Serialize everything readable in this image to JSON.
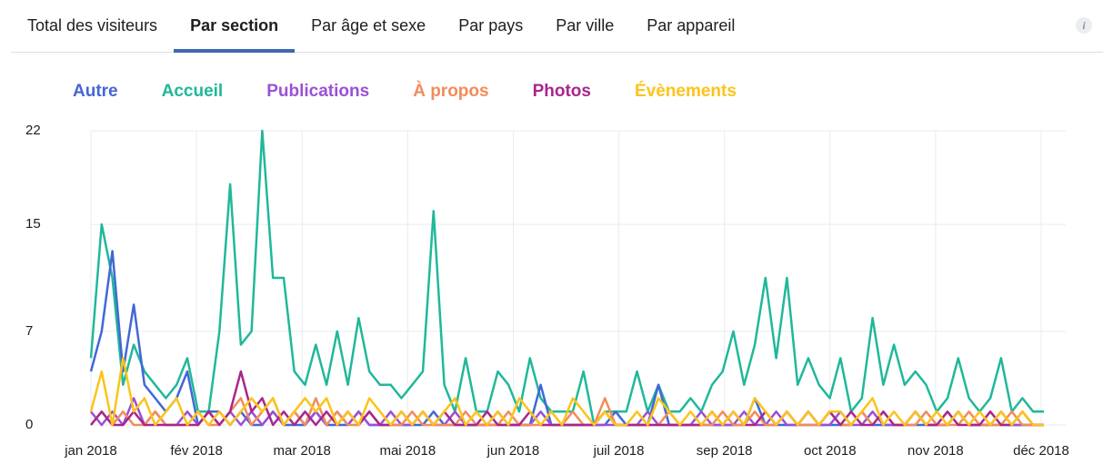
{
  "tabs": {
    "items": [
      "Total des visiteurs",
      "Par section",
      "Par âge et sexe",
      "Par pays",
      "Par ville",
      "Par appareil"
    ],
    "active": 1,
    "info_icon": "i"
  },
  "chart_data": {
    "type": "line",
    "xticks": [
      "jan 2018",
      "fév 2018",
      "mar 2018",
      "mai 2018",
      "jun 2018",
      "juil 2018",
      "sep 2018",
      "oct 2018",
      "nov 2018",
      "déc 2018"
    ],
    "ylim": [
      0,
      22
    ],
    "yticks": [
      0,
      7,
      15,
      22
    ],
    "grid": true,
    "series": [
      {
        "name": "Autre",
        "color": "#4267d6",
        "values": [
          4,
          7,
          13,
          4,
          9,
          3,
          2,
          1,
          2,
          4,
          0,
          1,
          1,
          0,
          1,
          0,
          0,
          1,
          0,
          0,
          0,
          1,
          0,
          0,
          0,
          1,
          0,
          0,
          0,
          0,
          0,
          0,
          1,
          0,
          0,
          0,
          0,
          0,
          0,
          0,
          0,
          0,
          3,
          0,
          0,
          0,
          0,
          0,
          0,
          1,
          0,
          0,
          0,
          3,
          0,
          0,
          0,
          0,
          0,
          0,
          0,
          0,
          2,
          0,
          0,
          0,
          0,
          0,
          0,
          0,
          0,
          0,
          1,
          0,
          0,
          0,
          0,
          0,
          0,
          0,
          0,
          1,
          0,
          0,
          0,
          0,
          0,
          0,
          0,
          0
        ]
      },
      {
        "name": "Accueil",
        "color": "#20b89a",
        "values": [
          5,
          15,
          11,
          3,
          6,
          4,
          3,
          2,
          3,
          5,
          1,
          1,
          7,
          18,
          6,
          7,
          22,
          11,
          11,
          4,
          3,
          6,
          3,
          7,
          3,
          8,
          4,
          3,
          3,
          2,
          3,
          4,
          16,
          3,
          1,
          5,
          1,
          1,
          4,
          3,
          1,
          5,
          2,
          1,
          1,
          1,
          4,
          0,
          1,
          1,
          1,
          4,
          1,
          3,
          1,
          1,
          2,
          1,
          3,
          4,
          7,
          3,
          6,
          11,
          5,
          11,
          3,
          5,
          3,
          2,
          5,
          1,
          2,
          8,
          3,
          6,
          3,
          4,
          3,
          1,
          2,
          5,
          2,
          1,
          2,
          5,
          1,
          2,
          1,
          1
        ]
      },
      {
        "name": "Publications",
        "color": "#9b50d6",
        "values": [
          1,
          0,
          1,
          0,
          2,
          0,
          1,
          0,
          0,
          1,
          0,
          1,
          0,
          1,
          0,
          1,
          0,
          1,
          0,
          1,
          0,
          1,
          0,
          1,
          0,
          1,
          0,
          0,
          1,
          0,
          0,
          1,
          0,
          0,
          1,
          0,
          0,
          0,
          1,
          0,
          0,
          0,
          1,
          0,
          0,
          0,
          0,
          0,
          0,
          0,
          0,
          0,
          1,
          0,
          0,
          0,
          0,
          1,
          0,
          0,
          0,
          1,
          0,
          0,
          1,
          0,
          0,
          1,
          0,
          0,
          1,
          0,
          0,
          1,
          0,
          0,
          0,
          1,
          0,
          0,
          0,
          1,
          0,
          0,
          0,
          1,
          0,
          0,
          0,
          0
        ]
      },
      {
        "name": "À propos",
        "color": "#f28c5b",
        "values": [
          0,
          1,
          0,
          1,
          0,
          0,
          1,
          0,
          0,
          0,
          1,
          0,
          0,
          1,
          2,
          0,
          1,
          2,
          0,
          1,
          0,
          2,
          0,
          1,
          0,
          0,
          1,
          0,
          0,
          0,
          1,
          0,
          0,
          0,
          0,
          1,
          0,
          0,
          0,
          1,
          0,
          0,
          0,
          0,
          0,
          1,
          0,
          0,
          2,
          0,
          0,
          0,
          0,
          0,
          1,
          0,
          0,
          0,
          0,
          1,
          0,
          0,
          1,
          0,
          0,
          1,
          0,
          0,
          0,
          1,
          0,
          0,
          1,
          0,
          1,
          0,
          0,
          0,
          1,
          0,
          0,
          0,
          1,
          0,
          0,
          0,
          1,
          0,
          0,
          0
        ]
      },
      {
        "name": "Photos",
        "color": "#a8268c",
        "values": [
          0,
          1,
          0,
          0,
          1,
          0,
          0,
          0,
          0,
          0,
          0,
          1,
          0,
          1,
          4,
          1,
          2,
          0,
          1,
          0,
          1,
          0,
          1,
          0,
          1,
          0,
          1,
          0,
          0,
          1,
          0,
          1,
          0,
          1,
          0,
          0,
          0,
          1,
          0,
          0,
          0,
          1,
          0,
          0,
          0,
          0,
          0,
          0,
          1,
          0,
          0,
          0,
          0,
          0,
          0,
          0,
          0,
          0,
          1,
          0,
          1,
          0,
          0,
          1,
          0,
          1,
          0,
          1,
          0,
          1,
          0,
          1,
          0,
          0,
          1,
          0,
          0,
          1,
          0,
          0,
          1,
          0,
          0,
          0,
          1,
          0,
          0,
          1,
          0,
          0
        ]
      },
      {
        "name": "Évènements",
        "color": "#fcc419",
        "values": [
          1,
          4,
          0,
          5,
          1,
          2,
          0,
          1,
          2,
          0,
          1,
          0,
          1,
          0,
          1,
          2,
          1,
          2,
          0,
          1,
          2,
          1,
          2,
          0,
          1,
          0,
          2,
          1,
          0,
          1,
          0,
          1,
          0,
          1,
          2,
          0,
          1,
          0,
          1,
          0,
          2,
          1,
          0,
          1,
          0,
          2,
          1,
          0,
          1,
          0,
          0,
          1,
          0,
          2,
          1,
          0,
          1,
          0,
          1,
          0,
          1,
          0,
          2,
          1,
          0,
          1,
          0,
          1,
          0,
          1,
          1,
          0,
          1,
          2,
          0,
          1,
          0,
          1,
          0,
          1,
          0,
          1,
          0,
          1,
          0,
          1,
          0,
          1,
          0,
          0
        ]
      }
    ]
  }
}
